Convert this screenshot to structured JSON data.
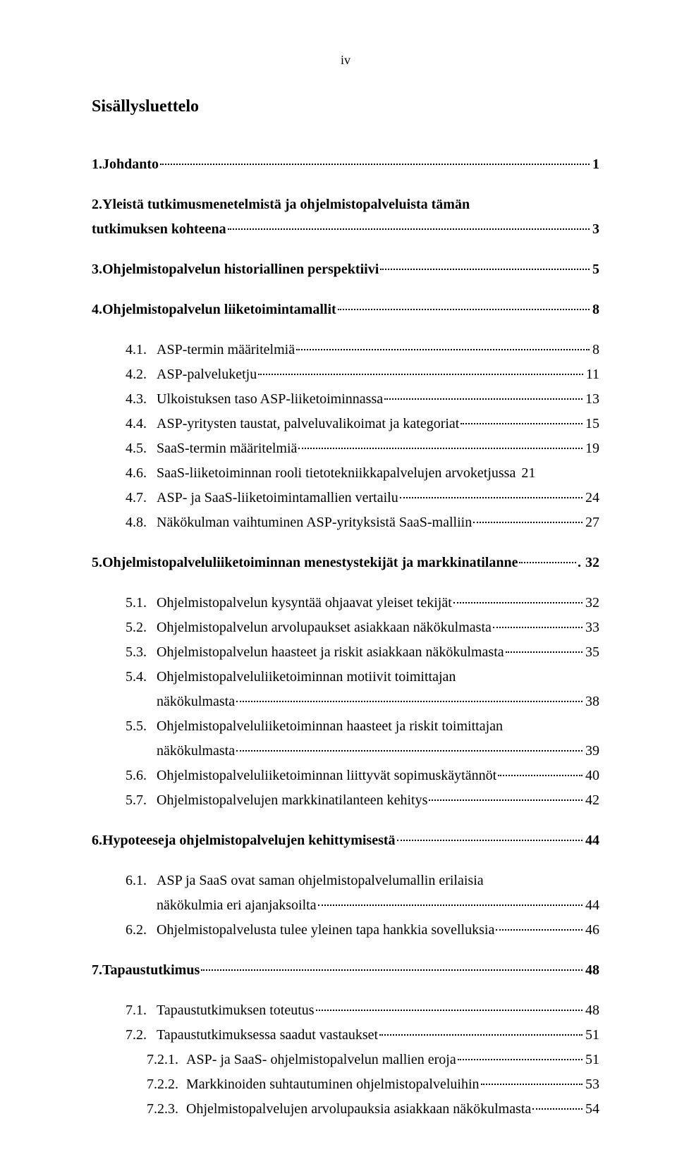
{
  "page": {
    "roman_numeral": "iv",
    "toc_title": "Sisällysluettelo"
  },
  "entries": [
    {
      "level": 1,
      "spaced": true,
      "num": "1.",
      "text": "Johdanto",
      "page": "1"
    },
    {
      "level": 1,
      "spaced": true,
      "num": "2.",
      "text": "Yleistä tutkimusmenetelmistä ja ohjelmistopalveluista tämän",
      "wrap": true,
      "wrap_text": "tutkimuksen kohteena",
      "page": "3"
    },
    {
      "level": 1,
      "spaced": true,
      "num": "3.",
      "text": "Ohjelmistopalvelun historiallinen perspektiivi",
      "page": "5"
    },
    {
      "level": 1,
      "spaced": true,
      "num": "4.",
      "text": "Ohjelmistopalvelun liiketoimintamallit",
      "page": "8"
    },
    {
      "level": 2,
      "spaced": true,
      "num": "4.1.",
      "text": "ASP-termin määritelmiä",
      "page": "8"
    },
    {
      "level": 2,
      "spaced": false,
      "num": "4.2.",
      "text": "ASP-palveluketju",
      "page": "11"
    },
    {
      "level": 2,
      "spaced": false,
      "num": "4.3.",
      "text": "Ulkoistuksen taso ASP-liiketoiminnassa",
      "page": "13"
    },
    {
      "level": 2,
      "spaced": false,
      "num": "4.4.",
      "text": "ASP-yritysten taustat, palveluvalikoimat ja kategoriat",
      "page": "15"
    },
    {
      "level": 2,
      "spaced": false,
      "num": "4.5.",
      "text": "SaaS-termin määritelmiä",
      "page": "19"
    },
    {
      "level": 2,
      "spaced": false,
      "num": "4.6.",
      "text": "SaaS-liiketoiminnan rooli tietotekniikkapalvelujen arvoketjussa",
      "page": "21",
      "tight": true
    },
    {
      "level": 2,
      "spaced": false,
      "num": "4.7.",
      "text": "ASP- ja SaaS-liiketoimintamallien vertailu",
      "page": "24"
    },
    {
      "level": 2,
      "spaced": false,
      "num": "4.8.",
      "text": "Näkökulman vaihtuminen ASP-yrityksistä SaaS-malliin",
      "page": "27"
    },
    {
      "level": 1,
      "spaced": true,
      "num": "5.",
      "text": "Ohjelmistopalveluliiketoiminnan menestystekijät ja markkinatilanne",
      "page": "32",
      "tight_after": true
    },
    {
      "level": 2,
      "spaced": true,
      "num": "5.1.",
      "text": "Ohjelmistopalvelun kysyntää ohjaavat yleiset tekijät",
      "page": "32"
    },
    {
      "level": 2,
      "spaced": false,
      "num": "5.2.",
      "text": "Ohjelmistopalvelun arvolupaukset asiakkaan näkökulmasta",
      "page": "33"
    },
    {
      "level": 2,
      "spaced": false,
      "num": "5.3.",
      "text": "Ohjelmistopalvelun haasteet ja riskit asiakkaan näkökulmasta",
      "page": "35"
    },
    {
      "level": 2,
      "spaced": false,
      "num": "5.4.",
      "text": "Ohjelmistopalveluliiketoiminnan motiivit toimittajan",
      "wrap": true,
      "wrap_text": "näkökulmasta",
      "page": "38"
    },
    {
      "level": 2,
      "spaced": false,
      "num": "5.5.",
      "text": "Ohjelmistopalveluliiketoiminnan haasteet ja riskit toimittajan",
      "wrap": true,
      "wrap_text": "näkökulmasta",
      "page": "39"
    },
    {
      "level": 2,
      "spaced": false,
      "num": "5.6.",
      "text": "Ohjelmistopalveluliiketoiminnan liittyvät sopimuskäytännöt",
      "page": "40"
    },
    {
      "level": 2,
      "spaced": false,
      "num": "5.7.",
      "text": "Ohjelmistopalvelujen markkinatilanteen kehitys",
      "page": "42"
    },
    {
      "level": 1,
      "spaced": true,
      "num": "6.",
      "text": "Hypoteeseja ohjelmistopalvelujen kehittymisestä",
      "page": "44"
    },
    {
      "level": 2,
      "spaced": true,
      "num": "6.1.",
      "text": "ASP ja SaaS ovat saman ohjelmistopalvelumallin erilaisia",
      "wrap": true,
      "wrap_text": "näkökulmia eri ajanjaksoilta",
      "page": "44"
    },
    {
      "level": 2,
      "spaced": false,
      "num": "6.2.",
      "text": "Ohjelmistopalvelusta tulee yleinen tapa hankkia sovelluksia",
      "page": "46"
    },
    {
      "level": 1,
      "spaced": true,
      "num": "7.",
      "text": "Tapaustutkimus",
      "page": "48"
    },
    {
      "level": 2,
      "spaced": true,
      "num": "7.1.",
      "text": "Tapaustutkimuksen toteutus",
      "page": "48"
    },
    {
      "level": 2,
      "spaced": false,
      "num": "7.2.",
      "text": "Tapaustutkimuksessa saadut vastaukset",
      "page": "51"
    },
    {
      "level": 3,
      "spaced": false,
      "num": "7.2.1.",
      "text": "ASP- ja SaaS- ohjelmistopalvelun mallien eroja",
      "page": "51"
    },
    {
      "level": 3,
      "spaced": false,
      "num": "7.2.2.",
      "text": "Markkinoiden suhtautuminen ohjelmistopalveluihin",
      "page": "53"
    },
    {
      "level": 3,
      "spaced": false,
      "num": "7.2.3.",
      "text": "Ohjelmistopalvelujen arvolupauksia asiakkaan näkökulmasta",
      "page": "54"
    }
  ]
}
